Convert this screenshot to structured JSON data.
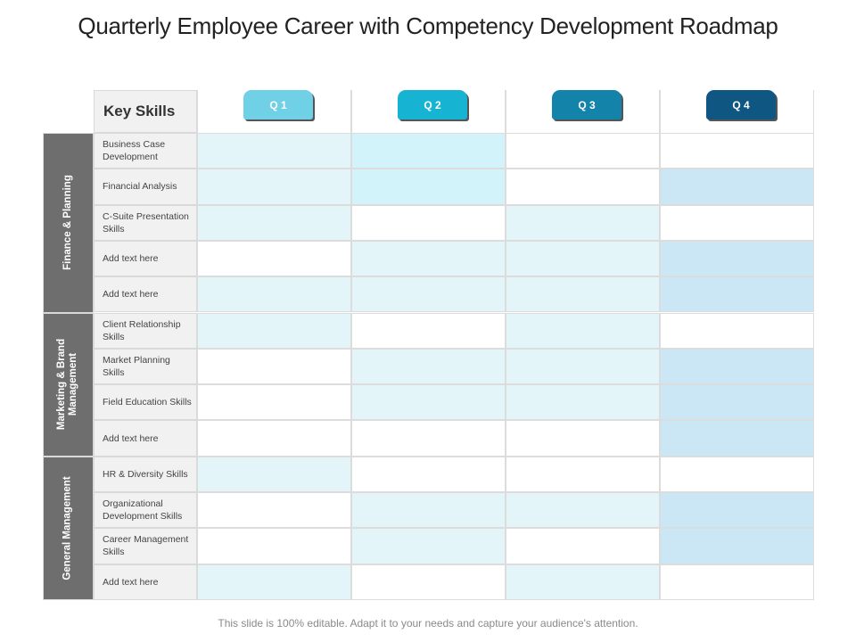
{
  "title": "Quarterly Employee Career with Competency Development Roadmap",
  "footer": "This slide is 100% editable. Adapt it to your needs and capture your audience's attention.",
  "key_skills_label": "Key Skills",
  "quarters": [
    {
      "label": "Q 1",
      "color": "#6fd0e6"
    },
    {
      "label": "Q 2",
      "color": "#16b3d3"
    },
    {
      "label": "Q 3",
      "color": "#1383aa"
    },
    {
      "label": "Q 4",
      "color": "#0f5682"
    }
  ],
  "categories": [
    {
      "label": "Finance & Planning",
      "rows": 5
    },
    {
      "label": "Marketing & Brand Management",
      "rows": 4
    },
    {
      "label": "General Management",
      "rows": 4
    }
  ],
  "skills": [
    {
      "label": "Business Case Development",
      "fill": [
        1,
        1,
        0,
        0
      ]
    },
    {
      "label": "Financial Analysis",
      "fill": [
        1,
        1,
        0,
        1
      ]
    },
    {
      "label": "C-Suite Presentation Skills",
      "fill": [
        1,
        0,
        1,
        0
      ]
    },
    {
      "label": "Add text here",
      "fill": [
        0,
        1,
        1,
        1
      ]
    },
    {
      "label": "Add text here",
      "fill": [
        1,
        1,
        1,
        1
      ]
    },
    {
      "label": "Client Relationship Skills",
      "fill": [
        1,
        0,
        1,
        0
      ]
    },
    {
      "label": "Market Planning Skills",
      "fill": [
        0,
        1,
        1,
        1
      ]
    },
    {
      "label": "Field Education Skills",
      "fill": [
        0,
        1,
        1,
        1
      ]
    },
    {
      "label": "Add text here",
      "fill": [
        0,
        0,
        0,
        1
      ]
    },
    {
      "label": "HR & Diversity Skills",
      "fill": [
        1,
        0,
        0,
        0
      ]
    },
    {
      "label": "Organizational Development Skills",
      "fill": [
        0,
        1,
        1,
        1
      ]
    },
    {
      "label": "Career Management Skills",
      "fill": [
        0,
        1,
        0,
        1
      ]
    },
    {
      "label": "Add text here",
      "fill": [
        1,
        0,
        1,
        0
      ]
    }
  ],
  "fill_colors": {
    "light": "#e3f5f9",
    "q2_strong": "#d2f3f9",
    "q4": "#cbe6f5",
    "empty": "#ffffff",
    "category_bg": "#6e6e6e",
    "label_bg": "#f1f1f1"
  }
}
